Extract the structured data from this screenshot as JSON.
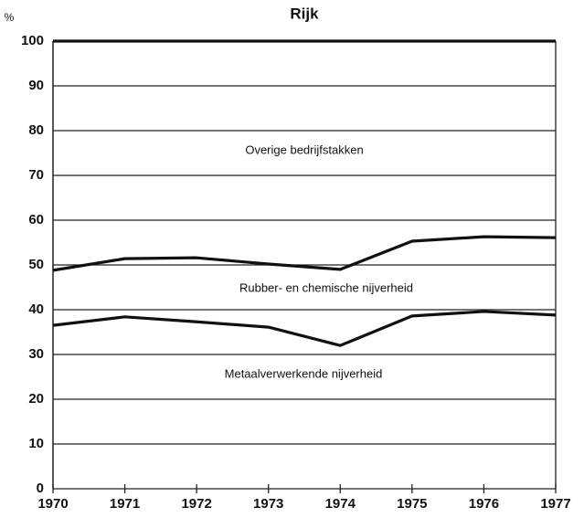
{
  "chart_data": {
    "type": "stacked_line",
    "title": "Rijk",
    "ylabel": "%",
    "x": [
      1970,
      1971,
      1972,
      1973,
      1974,
      1975,
      1976,
      1977
    ],
    "series": [
      {
        "name": "Metaalverwerkende nijverheid",
        "color": "#111111",
        "values": [
          36.5,
          38.4,
          37.3,
          36.1,
          32.0,
          38.6,
          39.6,
          38.8
        ]
      },
      {
        "name": "Rubber- en chemische nijverheid",
        "color": "#111111",
        "values": [
          12.3,
          13.0,
          14.3,
          14.1,
          17.0,
          16.7,
          16.7,
          17.3
        ]
      },
      {
        "name": "Overige bedrijfstakken",
        "color": "#111111",
        "values": [
          51.2,
          48.6,
          48.4,
          49.8,
          51.0,
          44.7,
          43.7,
          43.9
        ]
      }
    ],
    "xlim": [
      1970,
      1977
    ],
    "xticks": [
      1970,
      1971,
      1972,
      1973,
      1974,
      1975,
      1976,
      1977
    ],
    "ylim": [
      0,
      100
    ],
    "yticks": [
      0,
      10,
      20,
      30,
      40,
      50,
      60,
      70,
      80,
      90,
      100
    ],
    "grid": true
  }
}
